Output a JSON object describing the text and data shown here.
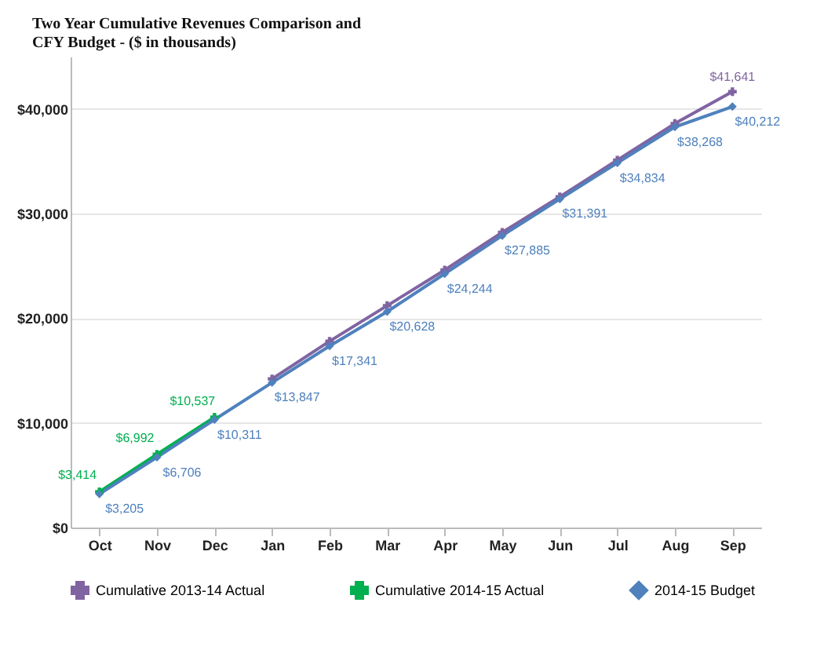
{
  "chart_data": {
    "type": "line",
    "title": "Two Year Cumulative Revenues Comparison and CFY Budget - ($ in thousands)",
    "categories": [
      "Oct",
      "Nov",
      "Dec",
      "Jan",
      "Feb",
      "Mar",
      "Apr",
      "May",
      "Jun",
      "Jul",
      "Aug",
      "Sep"
    ],
    "series": [
      {
        "name": "Cumulative 2013-14 Actual",
        "color": "#8064a2",
        "marker": "cross",
        "values": [
          null,
          null,
          null,
          14200,
          17800,
          21200,
          24600,
          28200,
          31600,
          35100,
          38600,
          41641
        ],
        "value_labels": [
          null,
          null,
          null,
          null,
          null,
          null,
          null,
          null,
          null,
          null,
          null,
          "$41,641"
        ]
      },
      {
        "name": "Cumulative 2014-15 Actual",
        "color": "#00b050",
        "marker": "cross",
        "values": [
          3414,
          6992,
          10537,
          null,
          null,
          null,
          null,
          null,
          null,
          null,
          null,
          null
        ],
        "value_labels": [
          "$3,414",
          "$6,992",
          "$10,537",
          null,
          null,
          null,
          null,
          null,
          null,
          null,
          null,
          null
        ]
      },
      {
        "name": "2014-15 Budget",
        "color": "#4f81bd",
        "marker": "diamond",
        "values": [
          3205,
          6706,
          10311,
          13847,
          17341,
          20628,
          24244,
          27885,
          31391,
          34834,
          38268,
          40212
        ],
        "value_labels": [
          "$3,205",
          "$6,706",
          "$10,311",
          "$13,847",
          "$17,341",
          "$20,628",
          "$24,244",
          "$27,885",
          "$31,391",
          "$34,834",
          "$38,268",
          "$40,212"
        ]
      }
    ],
    "ylim": [
      0,
      45000
    ],
    "yticks": [
      {
        "value": 0,
        "label": "$0"
      },
      {
        "value": 10000,
        "label": "$10,000"
      },
      {
        "value": 20000,
        "label": "$20,000"
      },
      {
        "value": 30000,
        "label": "$30,000"
      },
      {
        "value": 40000,
        "label": "$40,000"
      }
    ],
    "grid": "y",
    "legend": "bottom"
  }
}
